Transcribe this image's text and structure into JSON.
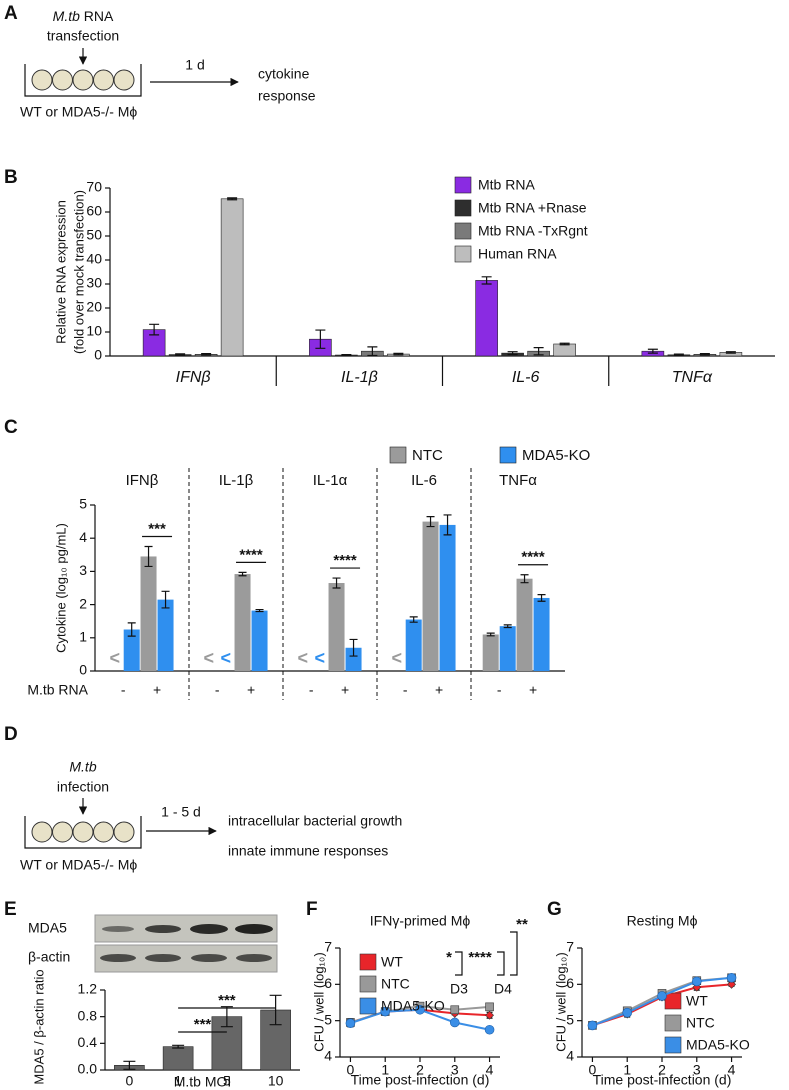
{
  "panel_labels": [
    "A",
    "B",
    "C",
    "D",
    "E",
    "F",
    "G"
  ],
  "diagram_a": {
    "agent": "M.tb",
    "material": "RNA",
    "action": "transfection",
    "duration": "1 d",
    "outcome": [
      "cytokine",
      "response"
    ],
    "cells": "WT or MDA5-/- Mϕ"
  },
  "diagram_d": {
    "agent": "M.tb",
    "action": "infection",
    "duration": "1 - 5 d",
    "outcome": [
      "intracellular bacterial growth",
      "innate immune responses"
    ],
    "cells": "WT or MDA5-/- Mϕ"
  },
  "blot_e": {
    "labels": [
      "MDA5",
      "β-actin"
    ]
  },
  "chart_data": [
    {
      "type": "bar",
      "y_label": [
        "Relative RNA expression",
        "(fold over mock transfection)"
      ],
      "categories": [
        "IFNβ",
        "IL-1β",
        "IL-6",
        "TNFα"
      ],
      "series": [
        {
          "name": "Mtb RNA",
          "color": "#8a2be2",
          "values": [
            11,
            7,
            31.5,
            2
          ],
          "errors": [
            2.2,
            3.8,
            1.5,
            0.8
          ]
        },
        {
          "name": "Mtb RNA +Rnase",
          "color": "#2e2e2e",
          "values": [
            0.6,
            0.4,
            1.2,
            0.5
          ],
          "errors": [
            0.3,
            0.2,
            0.6,
            0.3
          ]
        },
        {
          "name": "Mtb RNA -TxRgnt",
          "color": "#7a7a7a",
          "values": [
            0.7,
            2,
            2,
            0.7
          ],
          "errors": [
            0.3,
            1.8,
            1.5,
            0.3
          ]
        },
        {
          "name": "Human RNA",
          "color": "#bdbdbd",
          "values": [
            65.5,
            0.8,
            5,
            1.5
          ],
          "errors": [
            0.4,
            0.3,
            0.3,
            0.3
          ]
        }
      ],
      "ylim": [
        0,
        70
      ],
      "yticks": [
        0,
        10,
        20,
        30,
        40,
        50,
        60,
        70
      ],
      "legend": "upper-right"
    },
    {
      "type": "bar",
      "y_label": "Cytokine (log₁₀ pg/mL)",
      "groups": [
        "IFNβ",
        "IL-1β",
        "IL-1α",
        "IL-6",
        "TNFα"
      ],
      "condition_label": "M.tb RNA",
      "categories": [
        "-",
        "+",
        "-",
        "+",
        "-",
        "+",
        "-",
        "+",
        "-",
        "+"
      ],
      "series": [
        {
          "name": "NTC",
          "color": "#9b9b9b",
          "values": [
            null,
            3.45,
            null,
            2.92,
            null,
            2.65,
            null,
            4.5,
            1.1,
            2.78
          ],
          "errors": [
            null,
            0.3,
            null,
            0.05,
            null,
            0.15,
            null,
            0.15,
            0.04,
            0.12
          ]
        },
        {
          "name": "MDA5-KO",
          "color": "#2f8fef",
          "values": [
            1.25,
            2.15,
            null,
            1.82,
            null,
            0.7,
            1.55,
            4.4,
            1.35,
            2.2
          ],
          "errors": [
            0.2,
            0.25,
            null,
            0.03,
            null,
            0.25,
            0.08,
            0.3,
            0.04,
            0.1
          ]
        }
      ],
      "below_detection_label": "<",
      "significance": [
        null,
        "***",
        null,
        "****",
        null,
        "****",
        null,
        null,
        null,
        "****"
      ],
      "ylim": [
        0,
        5
      ],
      "yticks": [
        0,
        1,
        2,
        3,
        4,
        5
      ],
      "legend": "top"
    },
    {
      "type": "bar",
      "y_label": "MDA5 / β-actin ratio",
      "x_label": "M.tb MOI",
      "categories": [
        "0",
        "1",
        "5",
        "10"
      ],
      "values": [
        0.07,
        0.35,
        0.8,
        0.9
      ],
      "errors": [
        0.06,
        0.02,
        0.15,
        0.22
      ],
      "color": "#666666",
      "comparisons": [
        {
          "from": "1",
          "to": "5",
          "label": "***"
        },
        {
          "from": "1",
          "to": "10",
          "label": "***"
        }
      ],
      "ylim": [
        0,
        1.2
      ],
      "yticks": [
        {
          "value": 0,
          "label": "0.0"
        },
        {
          "value": 0.4,
          "label": "0.4"
        },
        {
          "value": 0.8,
          "label": "0.8"
        },
        {
          "value": 1.2,
          "label": "1.2"
        }
      ]
    },
    {
      "type": "line",
      "title": "IFNγ-primed Mϕ",
      "y_label": "CFU / well (log₁₀)",
      "x_label": "Time post-infection (d)",
      "x": [
        0,
        1,
        2,
        3,
        4
      ],
      "series": [
        {
          "name": "WT",
          "color": "#e8252a",
          "values": [
            4.95,
            5.25,
            5.3,
            5.2,
            5.15
          ],
          "errors": [
            0.1,
            0.08,
            0.06,
            0.04,
            0.08
          ]
        },
        {
          "name": "NTC",
          "color": "#999999",
          "values": [
            4.95,
            5.25,
            5.4,
            5.3,
            5.38
          ],
          "errors": [
            0.1,
            0.08,
            0.06,
            0.04,
            0.04
          ]
        },
        {
          "name": "MDA5-KO",
          "color": "#3a8ee6",
          "values": [
            4.93,
            5.25,
            5.3,
            4.95,
            4.75
          ],
          "errors": [
            0.1,
            0.08,
            0.06,
            0.03,
            0.07
          ]
        }
      ],
      "xlim": [
        -0.3,
        4.3
      ],
      "xticks": [
        0,
        1,
        2,
        3,
        4
      ],
      "ylim": [
        4,
        7
      ],
      "yticks": [
        4,
        5,
        6,
        7
      ],
      "legend": "upper-left",
      "annotations": [
        "*",
        "****",
        "**",
        "D3",
        "D4"
      ]
    },
    {
      "type": "line",
      "title": "Resting Mϕ",
      "y_label": "CFU / well (log₁₀)",
      "x_label": "Time post-infection (d)",
      "x": [
        0,
        1,
        2,
        3,
        4
      ],
      "series": [
        {
          "name": "WT",
          "color": "#e8252a",
          "values": [
            4.87,
            5.18,
            5.65,
            5.92,
            6.0
          ],
          "errors": [
            0.05,
            0.08,
            0.08,
            0.08,
            0.05
          ]
        },
        {
          "name": "NTC",
          "color": "#999999",
          "values": [
            4.87,
            5.27,
            5.75,
            6.1,
            6.18
          ],
          "errors": [
            0.05,
            0.08,
            0.08,
            0.06,
            0.04
          ]
        },
        {
          "name": "MDA5-KO",
          "color": "#3a8ee6",
          "values": [
            4.87,
            5.22,
            5.68,
            6.08,
            6.18
          ],
          "errors": [
            0.05,
            0.08,
            0.08,
            0.06,
            0.04
          ]
        }
      ],
      "xlim": [
        -0.3,
        4.3
      ],
      "xticks": [
        0,
        1,
        2,
        3,
        4
      ],
      "ylim": [
        4,
        7
      ],
      "yticks": [
        4,
        5,
        6,
        7
      ],
      "legend": "lower-right"
    }
  ]
}
